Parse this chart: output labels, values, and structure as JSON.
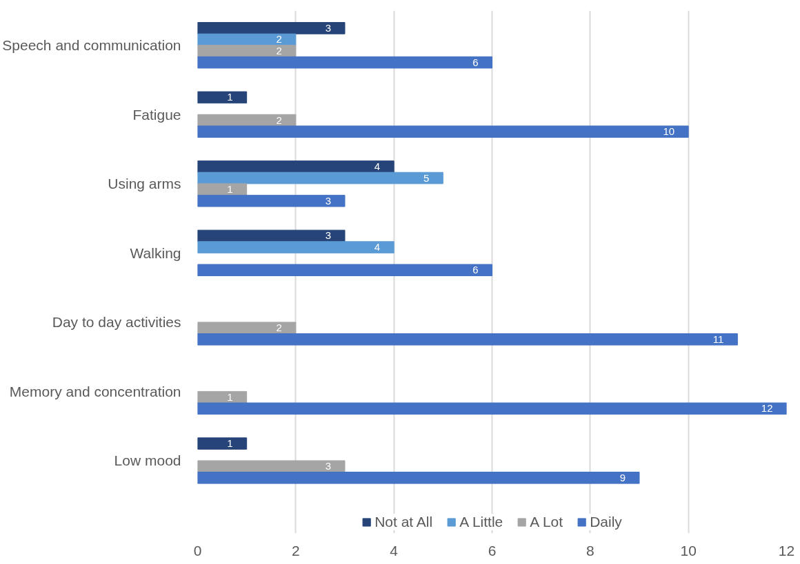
{
  "chart_data": {
    "type": "bar",
    "orientation": "horizontal",
    "categories": [
      "Speech and communication",
      "Fatigue",
      "Using arms",
      "Walking",
      "Day to day activities",
      "Memory and concentration",
      "Low mood"
    ],
    "series": [
      {
        "name": "Not at All",
        "color": "#264478",
        "values": [
          3,
          1,
          4,
          3,
          null,
          null,
          1
        ]
      },
      {
        "name": "A Little",
        "color": "#5b9bd5",
        "values": [
          2,
          null,
          5,
          4,
          null,
          null,
          null
        ]
      },
      {
        "name": "A Lot",
        "color": "#a5a5a5",
        "values": [
          2,
          2,
          1,
          null,
          2,
          1,
          3
        ]
      },
      {
        "name": "Daily",
        "color": "#4472c4",
        "values": [
          6,
          10,
          3,
          6,
          11,
          12,
          9
        ]
      }
    ],
    "xlim": [
      0,
      12
    ],
    "xticks": [
      0,
      2,
      4,
      6,
      8,
      10,
      12
    ],
    "grid": "x",
    "legend": "bottom",
    "data_labels": true
  }
}
